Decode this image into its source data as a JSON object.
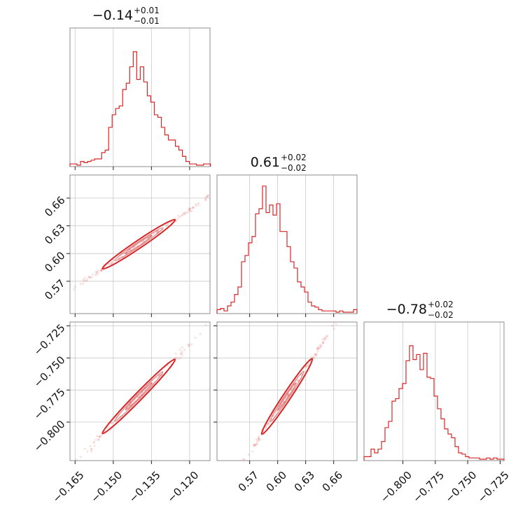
{
  "chart_data": {
    "type": "corner",
    "colors": {
      "series": "#d62728",
      "grid": "#c8c8c8",
      "frame": "#8c8c8c"
    },
    "grid": true,
    "parameters": [
      {
        "id": "p0",
        "title": {
          "value": "−0.14",
          "plus": "+0.01",
          "minus": "−0.01"
        },
        "median": -0.14,
        "sigma": 0.0095,
        "range": [
          -0.167,
          -0.112
        ],
        "ticks": [
          {
            "value": -0.165,
            "label": "−0.165"
          },
          {
            "value": -0.15,
            "label": "−0.150"
          },
          {
            "value": -0.135,
            "label": "−0.135"
          },
          {
            "value": -0.12,
            "label": "−0.120"
          }
        ],
        "hist": {
          "bin_start": -0.167,
          "bin_width": 0.00138,
          "counts": [
            0.01,
            0.01,
            0.0,
            0.03,
            0.02,
            0.03,
            0.04,
            0.05,
            0.05,
            0.1,
            0.12,
            0.3,
            0.4,
            0.45,
            0.47,
            0.6,
            0.65,
            0.78,
            0.9,
            0.68,
            0.78,
            0.66,
            0.55,
            0.5,
            0.4,
            0.38,
            0.3,
            0.24,
            0.2,
            0.2,
            0.15,
            0.12,
            0.07,
            0.03,
            0.01,
            0.01,
            0.0,
            0.0,
            0.01,
            0.01
          ]
        }
      },
      {
        "id": "p1",
        "title": {
          "value": "0.61",
          "plus": "+0.02",
          "minus": "−0.02"
        },
        "median": 0.61,
        "sigma": 0.018,
        "range": [
          0.535,
          0.685
        ],
        "ticks": [
          {
            "value": 0.57,
            "label": "0.57"
          },
          {
            "value": 0.6,
            "label": "0.60"
          },
          {
            "value": 0.63,
            "label": "0.63"
          },
          {
            "value": 0.66,
            "label": "0.66"
          }
        ],
        "hist": {
          "bin_start": 0.535,
          "bin_width": 0.00375,
          "counts": [
            0.02,
            0.03,
            0.01,
            0.05,
            0.08,
            0.14,
            0.2,
            0.4,
            0.45,
            0.55,
            0.6,
            0.78,
            0.82,
            1.0,
            0.79,
            0.85,
            0.77,
            0.86,
            0.64,
            0.64,
            0.52,
            0.4,
            0.35,
            0.24,
            0.2,
            0.16,
            0.08,
            0.05,
            0.04,
            0.02,
            0.01,
            0.01,
            0.01,
            0.01,
            0.0,
            0.01,
            0.0,
            0.0,
            0.0,
            0.02
          ]
        }
      },
      {
        "id": "p2",
        "title": {
          "value": "−0.78",
          "plus": "+0.02",
          "minus": "−0.02"
        },
        "median": -0.78,
        "sigma": 0.0195,
        "range": [
          -0.83,
          -0.722
        ],
        "ticks": [
          {
            "value": -0.8,
            "label": "−0.800"
          },
          {
            "value": -0.775,
            "label": "−0.775"
          },
          {
            "value": -0.75,
            "label": "−0.750"
          },
          {
            "value": -0.725,
            "label": "−0.725"
          }
        ],
        "hist": {
          "bin_start": -0.83,
          "bin_width": 0.0027,
          "counts": [
            0.02,
            0.02,
            0.08,
            0.05,
            0.08,
            0.14,
            0.25,
            0.3,
            0.46,
            0.48,
            0.56,
            0.6,
            0.78,
            0.9,
            0.79,
            0.83,
            0.71,
            0.84,
            0.65,
            0.64,
            0.5,
            0.4,
            0.32,
            0.24,
            0.2,
            0.17,
            0.1,
            0.05,
            0.04,
            0.02,
            0.01,
            0.01,
            0.01,
            0.0,
            0.0,
            0.01,
            0.0,
            0.01,
            0.0,
            0.0
          ]
        }
      }
    ],
    "joint": [
      {
        "x": "p0",
        "y": "p1",
        "slope": 1.86
      },
      {
        "x": "p0",
        "y": "p2",
        "slope": 2.03
      },
      {
        "x": "p1",
        "y": "p2",
        "slope": 1.09
      }
    ]
  }
}
